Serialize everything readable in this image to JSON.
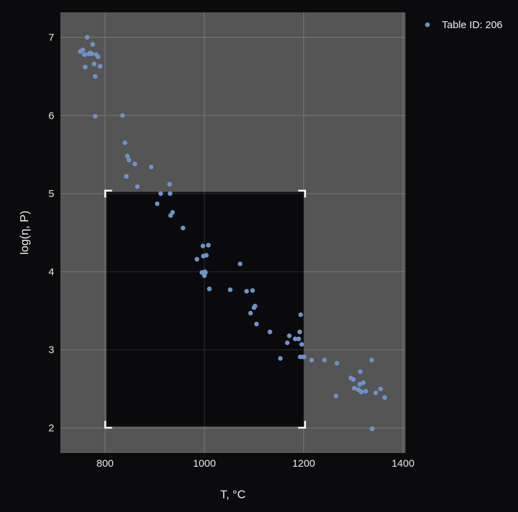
{
  "chart_data": {
    "type": "scatter",
    "title": "",
    "xlabel": "T, °C",
    "ylabel": "log(η, P)",
    "xlim": [
      710,
      1405
    ],
    "ylim": [
      1.68,
      7.32
    ],
    "xticks": [
      800,
      1000,
      1200,
      1400
    ],
    "yticks": [
      2,
      3,
      4,
      5,
      6,
      7
    ],
    "grid": true,
    "legend_position": "top-right-outside",
    "colors": {
      "page_background": "#0b0b0e",
      "plot_background": "#555555",
      "grid": "#7a7a7a",
      "point": "#6f92c8",
      "selection_fill": "#0a0a0c",
      "selection_corners": "#ffffff"
    },
    "selection_box": {
      "x": [
        803,
        1200
      ],
      "y": [
        2.02,
        5.02
      ]
    },
    "series": [
      {
        "name": "Table ID: 206",
        "x": [
          750,
          755,
          758,
          760,
          764,
          768,
          770,
          773,
          775,
          778,
          780,
          782,
          786,
          790,
          760,
          780,
          835,
          840,
          843,
          845,
          848,
          860,
          865,
          893,
          905,
          912,
          930,
          931,
          932,
          936,
          957,
          985,
          995,
          997,
          998,
          1000,
          1001,
          1002,
          1004,
          1008,
          1010,
          1052,
          1072,
          1085,
          1093,
          1097,
          1100,
          1102,
          1105,
          1132,
          1153,
          1167,
          1171,
          1183,
          1190,
          1192,
          1193,
          1194,
          1196,
          1199,
          1201,
          1216,
          1242,
          1265,
          1267,
          1295,
          1300,
          1302,
          1310,
          1313,
          1314,
          1315,
          1316,
          1320,
          1325,
          1337,
          1338,
          1345,
          1355,
          1363
        ],
        "y": [
          6.82,
          6.84,
          6.78,
          6.62,
          7.0,
          6.79,
          6.8,
          6.79,
          6.91,
          6.66,
          6.5,
          6.78,
          6.75,
          6.63,
          6.78,
          5.99,
          6.0,
          5.65,
          5.22,
          5.48,
          5.43,
          5.38,
          5.09,
          5.34,
          4.87,
          5.0,
          5.12,
          5.0,
          4.72,
          4.76,
          4.56,
          4.16,
          3.99,
          4.33,
          4.2,
          3.95,
          4.0,
          3.99,
          4.21,
          4.34,
          3.78,
          3.77,
          4.1,
          3.75,
          3.47,
          3.76,
          3.54,
          3.56,
          3.33,
          3.23,
          2.89,
          3.09,
          3.18,
          3.14,
          3.14,
          3.23,
          2.91,
          3.45,
          3.07,
          2.91,
          2.91,
          2.87,
          2.87,
          2.41,
          2.83,
          2.64,
          2.62,
          2.51,
          2.49,
          2.56,
          2.72,
          2.47,
          2.46,
          2.58,
          2.47,
          2.87,
          1.99,
          2.45,
          2.5,
          2.39
        ]
      }
    ]
  }
}
